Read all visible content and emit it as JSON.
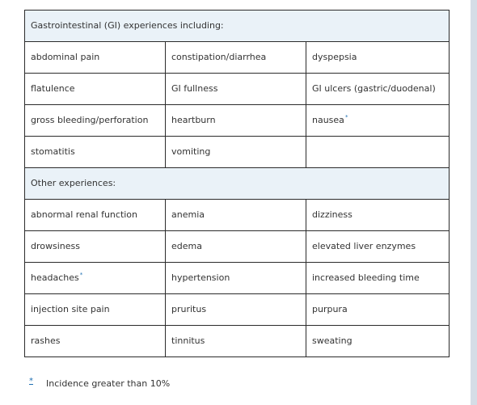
{
  "sections": [
    {
      "title": "Gastrointestinal (GI) experiences including:",
      "rows": [
        [
          {
            "text": "abdominal pain"
          },
          {
            "text": "constipation/diarrhea"
          },
          {
            "text": "dyspepsia"
          }
        ],
        [
          {
            "text": "flatulence"
          },
          {
            "text": "GI fullness"
          },
          {
            "text": "GI ulcers (gastric/duodenal)"
          }
        ],
        [
          {
            "text": "gross bleeding/perforation"
          },
          {
            "text": "heartburn"
          },
          {
            "text": "nausea",
            "mark": "*"
          }
        ],
        [
          {
            "text": "stomatitis"
          },
          {
            "text": "vomiting"
          },
          {
            "text": ""
          }
        ]
      ]
    },
    {
      "title": "Other experiences:",
      "rows": [
        [
          {
            "text": "abnormal renal function"
          },
          {
            "text": "anemia"
          },
          {
            "text": "dizziness"
          }
        ],
        [
          {
            "text": "drowsiness"
          },
          {
            "text": "edema"
          },
          {
            "text": "elevated liver enzymes"
          }
        ],
        [
          {
            "text": "headaches",
            "mark": "*"
          },
          {
            "text": "hypertension"
          },
          {
            "text": "increased bleeding time"
          }
        ],
        [
          {
            "text": "injection site pain"
          },
          {
            "text": "pruritus"
          },
          {
            "text": "purpura"
          }
        ],
        [
          {
            "text": "rashes"
          },
          {
            "text": "tinnitus"
          },
          {
            "text": "sweating"
          }
        ]
      ]
    }
  ],
  "footnote": {
    "mark": "*",
    "text": "Incidence greater than 10%"
  },
  "colors": {
    "section_background": "#eaf2f8",
    "link": "#1f6fb2",
    "scroll_track": "#d5dde6"
  }
}
